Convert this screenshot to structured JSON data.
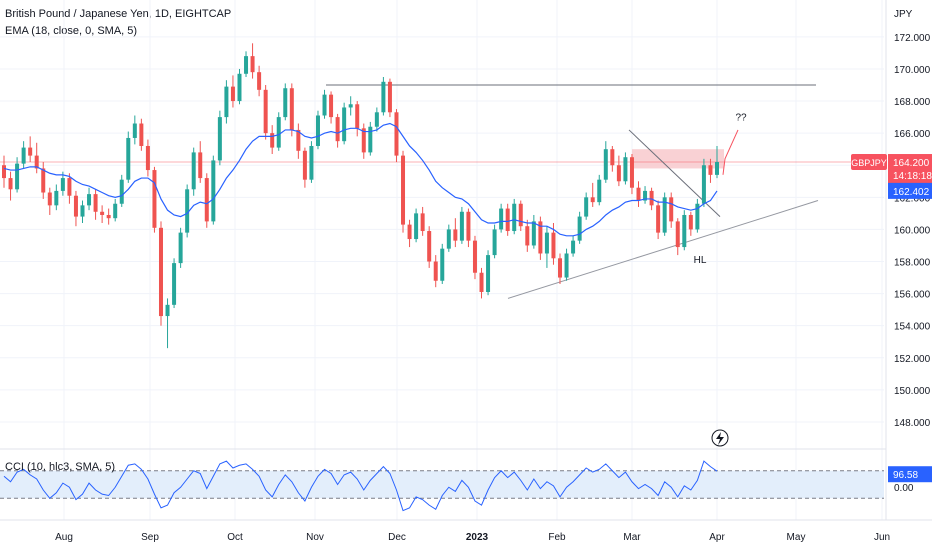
{
  "header": {
    "title": "British Pound / Japanese Yen, 1D, EIGHTCAP",
    "ema_label": "EMA (18, close, 0, SMA, 5)",
    "cci_label": "CCI (10, hlc3, SMA, 5)"
  },
  "price_axis": {
    "unit": "JPY",
    "ticks": [
      "172.000",
      "170.000",
      "168.000",
      "166.000",
      "164.000",
      "162.000",
      "160.000",
      "158.000",
      "156.000",
      "154.000",
      "152.000",
      "150.000",
      "148.000"
    ]
  },
  "badges": {
    "symbol": "GBPJPY",
    "price": "164.200",
    "countdown": "14:18:18",
    "ema_value": "162.402",
    "cci_value": "96.58",
    "cci_zero": "0.00"
  },
  "annotations": {
    "higher_low": "HL",
    "question": "??"
  },
  "time_axis": {
    "labels": [
      "Aug",
      "Sep",
      "Oct",
      "Nov",
      "Dec",
      "2023",
      "Feb",
      "Mar",
      "Apr",
      "May",
      "Jun"
    ]
  },
  "colors": {
    "up": "#26a69a",
    "down": "#ef5350",
    "ema": "#2962ff",
    "resistance_zone": "#f8c9cc",
    "symbol_badge": "#f7525f",
    "cci_band": "#e3eefb"
  },
  "chart_data": {
    "type": "candlestick",
    "series": [
      {
        "name": "GBPJPY",
        "values": [
          [
            164,
            164.6,
            162.6,
            163.2
          ],
          [
            163.2,
            163.6,
            161.8,
            162.5
          ],
          [
            162.5,
            164.5,
            162.3,
            164.1
          ],
          [
            164.1,
            165.5,
            163.8,
            165.1
          ],
          [
            165.1,
            165.8,
            164.2,
            164.6
          ],
          [
            164.6,
            165.4,
            163.5,
            163.8
          ],
          [
            163.8,
            164.2,
            161.9,
            162.3
          ],
          [
            162.3,
            162.6,
            160.9,
            161.5
          ],
          [
            161.5,
            162.8,
            161.2,
            162.4
          ],
          [
            162.4,
            163.6,
            162.1,
            163.2
          ],
          [
            163.2,
            163.5,
            161.6,
            162.1
          ],
          [
            162.1,
            162.4,
            160.2,
            160.8
          ],
          [
            160.8,
            161.8,
            160.4,
            161.5
          ],
          [
            161.5,
            162.6,
            161.2,
            162.2
          ],
          [
            162.2,
            162.5,
            160.6,
            161.1
          ],
          [
            161.1,
            161.5,
            160.4,
            160.9
          ],
          [
            160.9,
            161.3,
            160.3,
            160.7
          ],
          [
            160.7,
            161.9,
            160.5,
            161.6
          ],
          [
            161.6,
            163.4,
            161.4,
            163.1
          ],
          [
            163.1,
            166.1,
            162.9,
            165.7
          ],
          [
            165.7,
            167.1,
            165.3,
            166.6
          ],
          [
            166.6,
            166.9,
            164.9,
            165.2
          ],
          [
            165.2,
            165.6,
            163.3,
            163.7
          ],
          [
            163.7,
            163.9,
            159.8,
            160.1
          ],
          [
            160.1,
            160.5,
            154,
            154.6
          ],
          [
            154.6,
            155.7,
            152.6,
            155.3
          ],
          [
            155.3,
            158.2,
            155.1,
            157.9
          ],
          [
            157.9,
            160.1,
            157.6,
            159.8
          ],
          [
            159.8,
            162.8,
            159.5,
            162.5
          ],
          [
            162.5,
            165.1,
            162.1,
            164.8
          ],
          [
            164.8,
            165.5,
            162.9,
            163.2
          ],
          [
            163.2,
            163.5,
            160.1,
            160.5
          ],
          [
            160.5,
            164.6,
            160.3,
            164.3
          ],
          [
            164.3,
            167.4,
            164,
            167
          ],
          [
            167,
            169.3,
            166.6,
            168.9
          ],
          [
            168.9,
            169.6,
            167.6,
            168
          ],
          [
            168,
            170,
            167.8,
            169.7
          ],
          [
            169.7,
            171.1,
            169.5,
            170.8
          ],
          [
            170.8,
            171.6,
            169.4,
            169.8
          ],
          [
            169.8,
            170.2,
            168.3,
            168.7
          ],
          [
            168.7,
            169,
            165.6,
            166
          ],
          [
            166,
            166.5,
            164.7,
            165.1
          ],
          [
            165.1,
            167.3,
            164.9,
            167
          ],
          [
            167,
            169.1,
            166.8,
            168.8
          ],
          [
            168.8,
            169.1,
            165.8,
            166.2
          ],
          [
            166.2,
            166.6,
            164.4,
            164.9
          ],
          [
            164.9,
            165.1,
            162.6,
            163.1
          ],
          [
            163.1,
            165.5,
            162.9,
            165.2
          ],
          [
            165.2,
            167.4,
            165,
            167.1
          ],
          [
            167.1,
            168.7,
            166.9,
            168.4
          ],
          [
            168.4,
            168.6,
            166.6,
            167
          ],
          [
            167,
            167.2,
            165.1,
            165.5
          ],
          [
            165.5,
            167.9,
            165.3,
            167.6
          ],
          [
            167.6,
            168.3,
            167.1,
            167.8
          ],
          [
            167.8,
            168,
            165.8,
            166.3
          ],
          [
            166.3,
            166.6,
            164.4,
            164.8
          ],
          [
            164.8,
            166.7,
            164.6,
            166.4
          ],
          [
            166.4,
            167.6,
            166.1,
            167.3
          ],
          [
            167.3,
            169.5,
            167.1,
            169.2
          ],
          [
            169.2,
            169.4,
            167,
            167.3
          ],
          [
            167.3,
            167.5,
            164.2,
            164.6
          ],
          [
            164.6,
            164.9,
            159.8,
            160.3
          ],
          [
            160.3,
            160.6,
            158.9,
            159.4
          ],
          [
            159.4,
            161.3,
            159.2,
            161
          ],
          [
            161,
            161.4,
            159.6,
            159.9
          ],
          [
            159.9,
            160.2,
            157.6,
            158
          ],
          [
            158,
            158.4,
            156.4,
            156.8
          ],
          [
            156.8,
            159.1,
            156.6,
            158.8
          ],
          [
            158.8,
            160.3,
            158.6,
            160
          ],
          [
            160,
            160.7,
            158.9,
            159.3
          ],
          [
            159.3,
            161.4,
            159.1,
            161.1
          ],
          [
            161.1,
            161.3,
            158.9,
            159.3
          ],
          [
            159.3,
            159.6,
            156.9,
            157.3
          ],
          [
            157.3,
            157.6,
            155.7,
            156.1
          ],
          [
            156.1,
            158.7,
            155.9,
            158.4
          ],
          [
            158.4,
            160.3,
            158.2,
            160
          ],
          [
            160,
            161.6,
            159.8,
            161.3
          ],
          [
            161.3,
            161.6,
            159.6,
            159.9
          ],
          [
            159.9,
            161.9,
            159.7,
            161.6
          ],
          [
            161.6,
            161.8,
            159.9,
            160.2
          ],
          [
            160.2,
            160.6,
            158.6,
            159
          ],
          [
            159,
            160.9,
            158.8,
            160.5
          ],
          [
            160.5,
            160.8,
            158.1,
            158.5
          ],
          [
            158.5,
            160.2,
            157.6,
            159.8
          ],
          [
            159.8,
            160.4,
            157.8,
            158.2
          ],
          [
            158.2,
            158.5,
            156.6,
            157
          ],
          [
            157,
            158.8,
            156.8,
            158.5
          ],
          [
            158.5,
            159.6,
            158.3,
            159.3
          ],
          [
            159.3,
            161.1,
            159.1,
            160.8
          ],
          [
            160.8,
            162.3,
            160.6,
            162
          ],
          [
            162,
            162.9,
            161.4,
            161.7
          ],
          [
            161.7,
            163.4,
            161.5,
            163.1
          ],
          [
            163.1,
            165.5,
            162.9,
            165
          ],
          [
            165,
            165.2,
            163.6,
            164
          ],
          [
            164,
            164.6,
            162.7,
            163
          ],
          [
            163,
            164.8,
            162.8,
            164.5
          ],
          [
            164.5,
            164.7,
            162.2,
            162.6
          ],
          [
            162.6,
            163,
            161.4,
            161.8
          ],
          [
            161.8,
            162.7,
            161.6,
            162.4
          ],
          [
            162.4,
            162.6,
            161.2,
            161.5
          ],
          [
            161.5,
            161.8,
            159.4,
            159.8
          ],
          [
            159.8,
            162.3,
            159.6,
            162
          ],
          [
            162,
            162.3,
            160.1,
            160.5
          ],
          [
            160.5,
            160.7,
            158.4,
            158.9
          ],
          [
            158.9,
            161.2,
            158.7,
            160.9
          ],
          [
            160.9,
            161.1,
            159.6,
            160
          ],
          [
            160,
            161.9,
            159.8,
            161.6
          ],
          [
            161.6,
            164.4,
            161.4,
            164
          ],
          [
            164,
            164.4,
            162.9,
            163.4
          ],
          [
            163.4,
            165.2,
            163.2,
            164.2
          ]
        ]
      },
      {
        "name": "EMA (18, close, 0, SMA, 5)",
        "values": [
          163.8,
          163.7,
          163.7,
          163.8,
          163.9,
          163.9,
          163.7,
          163.5,
          163.4,
          163.4,
          163.3,
          163,
          162.8,
          162.7,
          162.5,
          162.3,
          162.1,
          162,
          162.1,
          162.5,
          163,
          163.2,
          163.2,
          162.9,
          161.9,
          161.2,
          160.9,
          160.8,
          161,
          161.5,
          161.7,
          161.6,
          161.9,
          162.5,
          163.2,
          163.7,
          164.3,
          165,
          165.5,
          165.8,
          165.8,
          165.8,
          165.9,
          166.2,
          166.2,
          166.1,
          165.8,
          165.7,
          165.8,
          166,
          166.1,
          166,
          166.2,
          166.3,
          166.3,
          166.1,
          166.1,
          166.2,
          166.5,
          166.6,
          166.4,
          165.8,
          165.2,
          164.8,
          164.3,
          163.7,
          163,
          162.6,
          162.3,
          162,
          161.9,
          161.6,
          161.1,
          160.6,
          160.4,
          160.4,
          160.5,
          160.5,
          160.6,
          160.5,
          160.4,
          160.4,
          160.2,
          160.2,
          160,
          159.7,
          159.6,
          159.6,
          159.7,
          160,
          160.2,
          160.5,
          160.9,
          161.2,
          161.4,
          161.7,
          161.8,
          161.8,
          161.9,
          161.9,
          161.7,
          161.7,
          161.6,
          161.4,
          161.3,
          161.2,
          161.3,
          161.6,
          161.8,
          162.4
        ]
      }
    ],
    "cci": [
      60,
      20,
      90,
      110,
      70,
      40,
      -40,
      -100,
      -60,
      10,
      -20,
      -110,
      -70,
      10,
      -40,
      -70,
      -80,
      -20,
      60,
      140,
      150,
      110,
      40,
      -70,
      -170,
      -150,
      -60,
      -20,
      40,
      100,
      80,
      -30,
      60,
      150,
      170,
      120,
      140,
      150,
      110,
      60,
      -40,
      -90,
      0,
      70,
      20,
      -60,
      -120,
      -20,
      60,
      110,
      80,
      0,
      70,
      90,
      40,
      -40,
      30,
      80,
      130,
      80,
      -40,
      -190,
      -170,
      -90,
      -110,
      -150,
      -180,
      -80,
      -20,
      -50,
      30,
      -20,
      -120,
      -150,
      -40,
      50,
      100,
      50,
      90,
      30,
      -40,
      40,
      -30,
      20,
      -10,
      -90,
      -20,
      20,
      70,
      120,
      90,
      110,
      150,
      100,
      50,
      90,
      20,
      -30,
      0,
      -30,
      -80,
      20,
      -20,
      -90,
      -10,
      -40,
      30,
      170,
      130,
      97
    ],
    "price_ticks": [
      172,
      170,
      168,
      166,
      164,
      162,
      160,
      158,
      156,
      154,
      152,
      150,
      148
    ],
    "ylim": [
      147,
      173.8
    ],
    "cci_levels": {
      "upper": 100,
      "lower": -100,
      "zero": 0
    },
    "last_price": 164.2,
    "ema_last": 162.402,
    "cci_last": 96.58,
    "time_labels": [
      "Aug",
      "Sep",
      "Oct",
      "Nov",
      "Dec",
      "2023",
      "Feb",
      "Mar",
      "Apr",
      "May",
      "Jun"
    ]
  }
}
